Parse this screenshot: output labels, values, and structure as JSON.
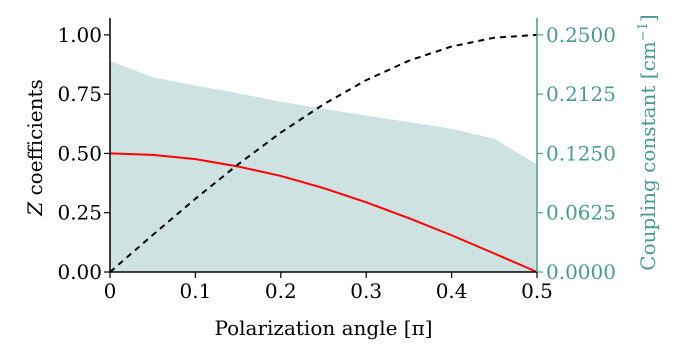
{
  "chart_data": {
    "type": "line",
    "xlabel": "Polarization angle [π]",
    "ylabel": "Z coefficients",
    "ylabel_var": "Z",
    "ylabel_rest": " coefficients",
    "y2label": "Coupling constant [cm",
    "y2label_sup": "−1",
    "y2label_end": "]",
    "xlim": [
      0,
      0.5
    ],
    "ylim": [
      0,
      1.05
    ],
    "y2lim": [
      0,
      0.2625
    ],
    "xticks": [
      "0",
      "0.1",
      "0.2",
      "0.3",
      "0.4",
      "0.5"
    ],
    "yticks": [
      "0.00",
      "0.25",
      "0.50",
      "0.75",
      "1.00"
    ],
    "y2ticks": [
      "0.0000",
      "0.0625",
      "0.1250",
      "0.2125",
      "0.2500"
    ],
    "series": [
      {
        "style": "solid",
        "axis": "left",
        "color": "#ff0000",
        "x": [
          0,
          0.05,
          0.1,
          0.15,
          0.2,
          0.25,
          0.3,
          0.35,
          0.4,
          0.45,
          0.5
        ],
        "y": [
          0.5,
          0.494,
          0.476,
          0.445,
          0.405,
          0.354,
          0.294,
          0.227,
          0.155,
          0.078,
          0.0
        ]
      },
      {
        "style": "dashed",
        "axis": "left",
        "color": "#000000",
        "x": [
          0,
          0.05,
          0.1,
          0.15,
          0.2,
          0.25,
          0.3,
          0.35,
          0.4,
          0.45,
          0.5
        ],
        "y": [
          0.0,
          0.156,
          0.309,
          0.454,
          0.588,
          0.707,
          0.809,
          0.891,
          0.951,
          0.988,
          1.0
        ]
      },
      {
        "style": "area",
        "axis": "right",
        "color": "#cfe2e2",
        "x": [
          0,
          0.05,
          0.1,
          0.15,
          0.2,
          0.25,
          0.3,
          0.35,
          0.4,
          0.45,
          0.5
        ],
        "y": [
          0.2225,
          0.2055,
          0.1965,
          0.1885,
          0.1795,
          0.172,
          0.165,
          0.158,
          0.151,
          0.1405,
          0.1135
        ]
      }
    ],
    "colors": {
      "right_axis": "#4a9a94",
      "left_axis": "#000000"
    }
  }
}
